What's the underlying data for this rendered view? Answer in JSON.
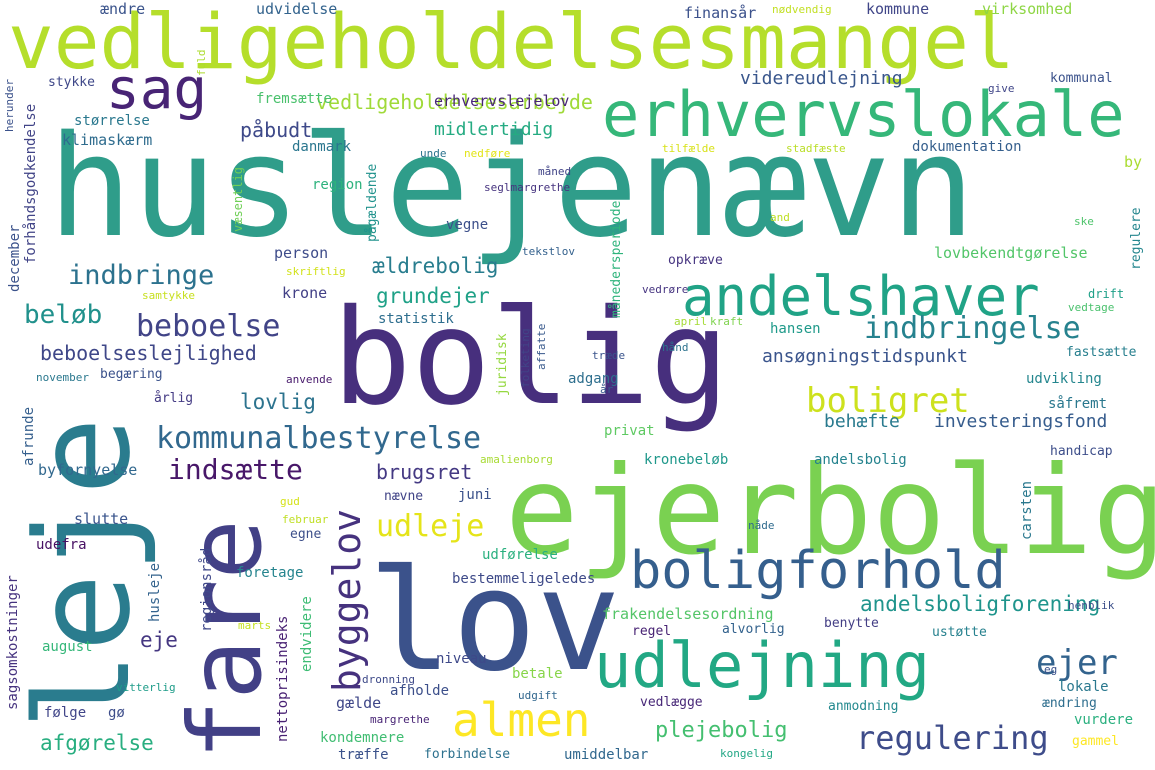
{
  "words": [
    {
      "text": "huslejenævn",
      "color": "#2f9d8a"
    },
    {
      "text": "bolig",
      "color": "#472f7d"
    },
    {
      "text": "vedligeholdelsesmangel",
      "color": "#b5de2b"
    },
    {
      "text": "ejerbolig",
      "color": "#7ad151"
    },
    {
      "text": "leje",
      "color": "#2a7c8e"
    },
    {
      "text": "lov",
      "color": "#3b528b"
    },
    {
      "text": "fare",
      "color": "#424086"
    },
    {
      "text": "erhvervslokale",
      "color": "#35b779"
    },
    {
      "text": "udlejning",
      "color": "#22a884"
    },
    {
      "text": "sag",
      "color": "#482475"
    },
    {
      "text": "andelshaver",
      "color": "#20a386"
    },
    {
      "text": "boligforhold",
      "color": "#355f8d"
    },
    {
      "text": "almen",
      "color": "#fde725"
    },
    {
      "text": "byggelov",
      "color": "#46327e"
    },
    {
      "text": "indbringelse",
      "color": "#26828e"
    },
    {
      "text": "beboelse",
      "color": "#414487"
    },
    {
      "text": "kommunalbestyrelse",
      "color": "#31688e"
    },
    {
      "text": "boligret",
      "color": "#cde11d"
    },
    {
      "text": "regulering",
      "color": "#3e4c8a"
    },
    {
      "text": "indbringe",
      "color": "#2c728e"
    },
    {
      "text": "ejer",
      "color": "#33638d"
    },
    {
      "text": "udleje",
      "color": "#e5e419"
    },
    {
      "text": "indsætte",
      "color": "#481769"
    },
    {
      "text": "beløb",
      "color": "#21918c"
    },
    {
      "text": "andelsboligforening",
      "color": "#1f948c"
    },
    {
      "text": "vedligeholdelsesarbejde",
      "color": "#a0da39"
    },
    {
      "text": "beboelseslejlighed",
      "color": "#3f4788"
    },
    {
      "text": "afgørelse",
      "color": "#28ae80"
    },
    {
      "text": "plejebolig",
      "color": "#44bf70"
    },
    {
      "text": "lovlig",
      "color": "#2c738e"
    },
    {
      "text": "grundejer",
      "color": "#1fa187"
    },
    {
      "text": "ældrebolig",
      "color": "#287d8e"
    },
    {
      "text": "påbudt",
      "color": "#3e4989"
    },
    {
      "text": "eje",
      "color": "#453781"
    },
    {
      "text": "brugsret",
      "color": "#443983"
    },
    {
      "text": "midlertidig",
      "color": "#25ab82"
    },
    {
      "text": "videreudlejning",
      "color": "#39568c"
    },
    {
      "text": "behæfte",
      "color": "#297a8e"
    },
    {
      "text": "investeringsfond",
      "color": "#365c8d"
    },
    {
      "text": "ansøgningstidspunkt",
      "color": "#3a548c"
    },
    {
      "text": "erhvervslejelov",
      "color": "#482677"
    },
    {
      "text": "ændre",
      "color": "#3a538b"
    },
    {
      "text": "udvidelse",
      "color": "#33638d"
    },
    {
      "text": "finansår",
      "color": "#3b518b"
    },
    {
      "text": "nødvendig",
      "color": "#c2df23"
    },
    {
      "text": "kommune",
      "color": "#404688"
    },
    {
      "text": "virksomhed",
      "color": "#8ed645"
    },
    {
      "text": "fremsætte",
      "color": "#4ac16d"
    },
    {
      "text": "størrelse",
      "color": "#2a788e"
    },
    {
      "text": "klimaskærm",
      "color": "#2f6c8e"
    },
    {
      "text": "stykke",
      "color": "#3f4889"
    },
    {
      "text": "danmark",
      "color": "#2a768e"
    },
    {
      "text": "pågældende",
      "color": "#20928c"
    },
    {
      "text": "dokumentation",
      "color": "#355f8d"
    },
    {
      "text": "tilfælde",
      "color": "#d8e219"
    },
    {
      "text": "stadfæste",
      "color": "#bade28"
    },
    {
      "text": "kommunal",
      "color": "#3b528b"
    },
    {
      "text": "give",
      "color": "#404688"
    },
    {
      "text": "by",
      "color": "#aadc32"
    },
    {
      "text": "region",
      "color": "#2db27d"
    },
    {
      "text": "måned",
      "color": "#414487"
    },
    {
      "text": "seglmargrethe",
      "color": "#46337f"
    },
    {
      "text": "vegne",
      "color": "#3c4f8a"
    },
    {
      "text": "person",
      "color": "#3e4c8a"
    },
    {
      "text": "krone",
      "color": "#424086"
    },
    {
      "text": "opkræve",
      "color": "#463480"
    },
    {
      "text": "lovbekendtgørelse",
      "color": "#52c569"
    },
    {
      "text": "statistik",
      "color": "#2e6e8e"
    },
    {
      "text": "hansen",
      "color": "#1f9a8a"
    },
    {
      "text": "fastsætte",
      "color": "#277f8e"
    },
    {
      "text": "adgang",
      "color": "#2e6f8e"
    },
    {
      "text": "begæring",
      "color": "#3b528b"
    },
    {
      "text": "udvikling",
      "color": "#24868e"
    },
    {
      "text": "årlig",
      "color": "#443b84"
    },
    {
      "text": "såfremt",
      "color": "#2a788e"
    },
    {
      "text": "privat",
      "color": "#5ec962"
    },
    {
      "text": "kronebeløb",
      "color": "#1f988b"
    },
    {
      "text": "andelsbolig",
      "color": "#25838e"
    },
    {
      "text": "handicap",
      "color": "#3d4e8a"
    },
    {
      "text": "byfornyelse",
      "color": "#31688e"
    },
    {
      "text": "juni",
      "color": "#3b528b"
    },
    {
      "text": "nævne",
      "color": "#414487"
    },
    {
      "text": "slutte",
      "color": "#3a548c"
    },
    {
      "text": "udefra",
      "color": "#471063"
    },
    {
      "text": "egne",
      "color": "#3c4f8a"
    },
    {
      "text": "udførelse",
      "color": "#2ab07f"
    },
    {
      "text": "foretage",
      "color": "#25848e"
    },
    {
      "text": "bestemmeligeledes",
      "color": "#3e4a89"
    },
    {
      "text": "frakendelsesordning",
      "color": "#54c568"
    },
    {
      "text": "regel",
      "color": "#482374"
    },
    {
      "text": "alvorlig",
      "color": "#33628d"
    },
    {
      "text": "benytte",
      "color": "#433e85"
    },
    {
      "text": "ustøtte",
      "color": "#26818e"
    },
    {
      "text": "august",
      "color": "#35b779"
    },
    {
      "text": "niveau",
      "color": "#3e4989"
    },
    {
      "text": "betale",
      "color": "#87d549"
    },
    {
      "text": "afholde",
      "color": "#3c4f8a"
    },
    {
      "text": "gælde",
      "color": "#3f4788"
    },
    {
      "text": "vedlægge",
      "color": "#482878"
    },
    {
      "text": "anmodning",
      "color": "#23898e"
    },
    {
      "text": "lokale",
      "color": "#2a788e"
    },
    {
      "text": "ændring",
      "color": "#2e6e8e"
    },
    {
      "text": "vurdere",
      "color": "#2ab07f"
    },
    {
      "text": "følge",
      "color": "#404588"
    },
    {
      "text": "gø",
      "color": "#3d4d8a"
    },
    {
      "text": "kondemnere",
      "color": "#40bd72"
    },
    {
      "text": "træffe",
      "color": "#3b528b"
    },
    {
      "text": "forbindelse",
      "color": "#2d718e"
    },
    {
      "text": "umiddelbar",
      "color": "#31688e"
    },
    {
      "text": "gammel",
      "color": "#fde725"
    },
    {
      "text": "forhåndsgodkendelse",
      "color": "#414487"
    },
    {
      "text": "december",
      "color": "#3b528b"
    },
    {
      "text": "afrunde",
      "color": "#355f8d"
    },
    {
      "text": "sagsomkostninger",
      "color": "#46337f"
    },
    {
      "text": "nettoprisindeks",
      "color": "#482173"
    },
    {
      "text": "regionsråd",
      "color": "#3f4889"
    },
    {
      "text": "husleje",
      "color": "#33638d"
    },
    {
      "text": "carsten",
      "color": "#2a788e"
    },
    {
      "text": "regulere",
      "color": "#24868e"
    },
    {
      "text": "månedersperiode",
      "color": "#2fb47c"
    },
    {
      "text": "juridisk",
      "color": "#95d840"
    },
    {
      "text": "folketing",
      "color": "#414487"
    },
    {
      "text": "affatte",
      "color": "#38598c"
    },
    {
      "text": "endvidere",
      "color": "#3dbc74"
    },
    {
      "text": "væsentlig",
      "color": "#70cf57"
    },
    {
      "text": "fuld",
      "color": "#addc30"
    },
    {
      "text": "herunder",
      "color": "#3b528b"
    },
    {
      "text": "unde",
      "color": "#2c738e"
    },
    {
      "text": "nedføre",
      "color": "#e2e418"
    },
    {
      "text": "tekstlov",
      "color": "#34618d"
    },
    {
      "text": "skriftlig",
      "color": "#d2e21b"
    },
    {
      "text": "samtykke",
      "color": "#c8e020"
    },
    {
      "text": "april",
      "color": "#a5db36"
    },
    {
      "text": "kraft",
      "color": "#7fd34e"
    },
    {
      "text": "træde",
      "color": "#3a548c"
    },
    {
      "text": "vedrøre",
      "color": "#463480"
    },
    {
      "text": "år",
      "color": "#38598c"
    },
    {
      "text": "hånd",
      "color": "#2c728e"
    },
    {
      "text": "november",
      "color": "#2a788e"
    },
    {
      "text": "anvende",
      "color": "#481a6c"
    },
    {
      "text": "and",
      "color": "#bfdf25"
    },
    {
      "text": "ske",
      "color": "#4ec36b"
    },
    {
      "text": "drift",
      "color": "#1fa088"
    },
    {
      "text": "vedtage",
      "color": "#4ac16d"
    },
    {
      "text": "amalienborg",
      "color": "#a8db34"
    },
    {
      "text": "gud",
      "color": "#d5e21a"
    },
    {
      "text": "februar",
      "color": "#c0df25"
    },
    {
      "text": "nåde",
      "color": "#2f6b8e"
    },
    {
      "text": "marts",
      "color": "#c5e021"
    },
    {
      "text": "dronning",
      "color": "#3e4a89"
    },
    {
      "text": "udgift",
      "color": "#31678e"
    },
    {
      "text": "margrethe",
      "color": "#482475"
    },
    {
      "text": "kongelig",
      "color": "#22a785"
    },
    {
      "text": "vitterlig",
      "color": "#1e9c89"
    },
    {
      "text": "henblik",
      "color": "#3c4f8a"
    },
    {
      "text": "eg",
      "color": "#3b528b"
    }
  ]
}
